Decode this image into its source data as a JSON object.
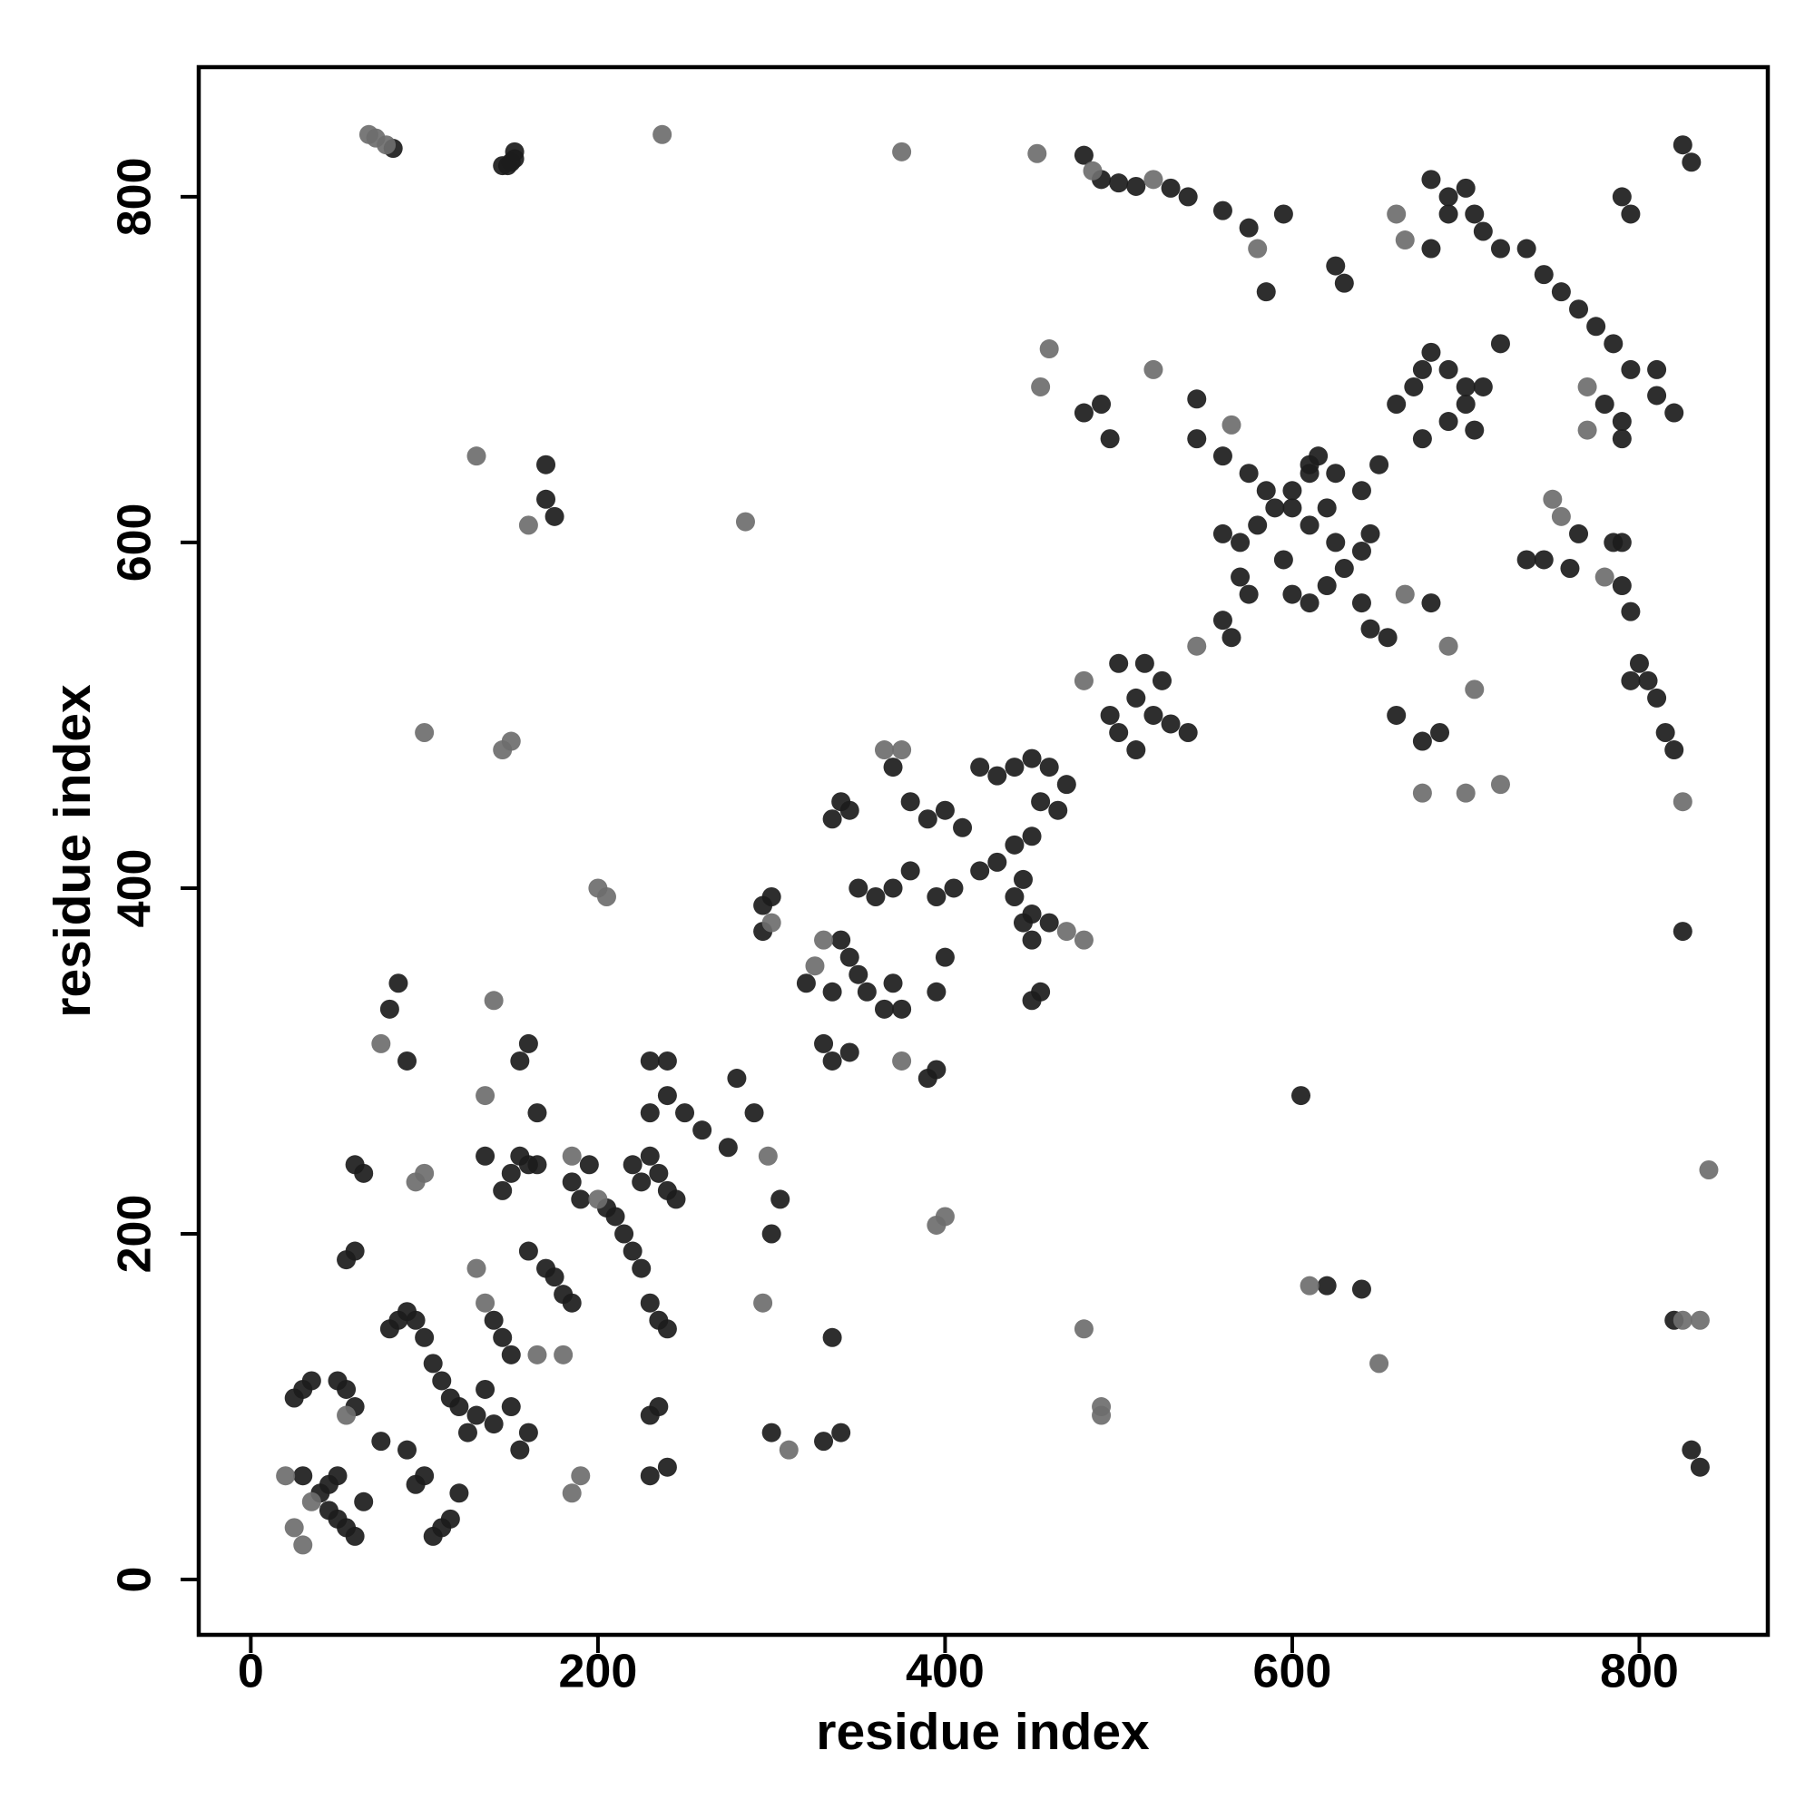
{
  "chart_data": {
    "type": "scatter",
    "x_label": "residue index",
    "y_label": "residue index",
    "xlim": [
      -30,
      874
    ],
    "ylim": [
      -32,
      875
    ],
    "xticks": [
      0,
      200,
      400,
      600,
      800
    ],
    "yticks": [
      0,
      200,
      400,
      600,
      800
    ],
    "grid": false,
    "series": [
      {
        "color": "#1c1c1c",
        "x": [
          82,
          145,
          148,
          150,
          152,
          152,
          480,
          490,
          500,
          510,
          530,
          540,
          560,
          575,
          585,
          595,
          625,
          630,
          680,
          690,
          700,
          705,
          710,
          720,
          735,
          745,
          755,
          765,
          775,
          785,
          790,
          795,
          825,
          830,
          680,
          690,
          480,
          490,
          495,
          545,
          545,
          560,
          575,
          585,
          600,
          610,
          615,
          625,
          640,
          650,
          660,
          670,
          675,
          680,
          690,
          700,
          690,
          700,
          710,
          720,
          705,
          675,
          780,
          790,
          795,
          810,
          810,
          820,
          790,
          560,
          570,
          580,
          590,
          600,
          610,
          595,
          600,
          610,
          620,
          630,
          640,
          645,
          610,
          620,
          625,
          570,
          575,
          560,
          565,
          640,
          645,
          655,
          680,
          660,
          675,
          685,
          765,
          745,
          760,
          790,
          785,
          795,
          800,
          805,
          810,
          815,
          820,
          825,
          830,
          835,
          820,
          735,
          790,
          795,
          495,
          510,
          500,
          520,
          530,
          540,
          500,
          515,
          525,
          510,
          420,
          430,
          440,
          450,
          460,
          470,
          465,
          455,
          450,
          440,
          430,
          420,
          410,
          400,
          390,
          380,
          370,
          340,
          345,
          335,
          450,
          460,
          445,
          440,
          445,
          450,
          455,
          450,
          405,
          395,
          380,
          370,
          360,
          350,
          340,
          345,
          350,
          355,
          365,
          370,
          375,
          335,
          320,
          400,
          395,
          390,
          395,
          330,
          335,
          345,
          295,
          295,
          300,
          170,
          175,
          170,
          620,
          640,
          605,
          335,
          330,
          340,
          300,
          300,
          305,
          290,
          280,
          275,
          260,
          250,
          240,
          230,
          240,
          230,
          220,
          225,
          230,
          235,
          240,
          245,
          205,
          210,
          215,
          220,
          225,
          230,
          235,
          240,
          230,
          235,
          240,
          230,
          195,
          185,
          190,
          160,
          155,
          165,
          150,
          145,
          135,
          155,
          160,
          165,
          85,
          80,
          90,
          60,
          65,
          55,
          60,
          160,
          170,
          175,
          180,
          185,
          160,
          155,
          150,
          140,
          135,
          130,
          125,
          120,
          115,
          110,
          105,
          100,
          95,
          90,
          85,
          80,
          140,
          145,
          150,
          110,
          105,
          115,
          100,
          95,
          120,
          90,
          75,
          60,
          55,
          50,
          30,
          25,
          35,
          30,
          40,
          45,
          50,
          55,
          60,
          50,
          45,
          65
        ],
        "values": [
          828,
          818,
          818,
          820,
          822,
          826,
          824,
          810,
          808,
          806,
          805,
          800,
          792,
          782,
          745,
          790,
          760,
          750,
          810,
          800,
          805,
          790,
          780,
          770,
          770,
          755,
          745,
          735,
          725,
          715,
          800,
          790,
          830,
          820,
          770,
          790,
          675,
          680,
          660,
          683,
          660,
          650,
          640,
          630,
          620,
          640,
          650,
          640,
          630,
          645,
          680,
          690,
          700,
          710,
          700,
          690,
          670,
          680,
          690,
          715,
          665,
          660,
          680,
          670,
          700,
          700,
          685,
          675,
          660,
          605,
          600,
          610,
          620,
          630,
          645,
          590,
          570,
          565,
          575,
          585,
          595,
          605,
          610,
          620,
          600,
          580,
          570,
          555,
          545,
          565,
          550,
          545,
          565,
          500,
          485,
          490,
          605,
          590,
          585,
          575,
          600,
          560,
          530,
          520,
          510,
          490,
          480,
          375,
          75,
          65,
          150,
          590,
          600,
          520,
          500,
          510,
          490,
          500,
          495,
          490,
          530,
          530,
          520,
          480,
          470,
          465,
          470,
          475,
          470,
          460,
          445,
          450,
          430,
          425,
          415,
          410,
          435,
          445,
          440,
          450,
          470,
          450,
          445,
          440,
          385,
          380,
          405,
          395,
          380,
          370,
          340,
          335,
          400,
          395,
          410,
          400,
          395,
          400,
          370,
          360,
          350,
          340,
          330,
          345,
          330,
          340,
          345,
          360,
          340,
          290,
          295,
          310,
          300,
          305,
          375,
          390,
          395,
          625,
          615,
          645,
          170,
          168,
          280,
          140,
          80,
          85,
          85,
          200,
          220,
          270,
          290,
          250,
          260,
          270,
          280,
          300,
          300,
          270,
          240,
          230,
          245,
          235,
          225,
          220,
          215,
          210,
          200,
          190,
          180,
          160,
          150,
          145,
          95,
          100,
          65,
          60,
          240,
          230,
          220,
          240,
          245,
          240,
          235,
          225,
          245,
          300,
          310,
          270,
          345,
          330,
          300,
          240,
          235,
          185,
          190,
          190,
          180,
          175,
          165,
          160,
          85,
          75,
          100,
          90,
          110,
          95,
          85,
          100,
          105,
          115,
          125,
          140,
          150,
          155,
          150,
          145,
          150,
          140,
          130,
          30,
          25,
          35,
          60,
          55,
          50,
          75,
          80,
          100,
          110,
          115,
          110,
          105,
          115,
          60,
          50,
          40,
          35,
          30,
          25,
          60,
          55,
          45
        ]
      },
      {
        "color": "#6e6e6e",
        "x": [
          68,
          72,
          78,
          237,
          375,
          453,
          485,
          520,
          580,
          660,
          665,
          455,
          460,
          520,
          565,
          770,
          770,
          750,
          755,
          780,
          700,
          675,
          720,
          705,
          825,
          840,
          825,
          835,
          365,
          375,
          480,
          470,
          375,
          300,
          200,
          205,
          130,
          285,
          100,
          145,
          150,
          160,
          395,
          400,
          610,
          650,
          480,
          490,
          490,
          310,
          295,
          298,
          200,
          185,
          135,
          140,
          75,
          95,
          100,
          165,
          180,
          190,
          185,
          130,
          135,
          20,
          25,
          30,
          35,
          55,
          330,
          325,
          545,
          480,
          690,
          665
        ],
        "values": [
          836,
          834,
          830,
          836,
          826,
          825,
          815,
          810,
          770,
          790,
          775,
          690,
          712,
          700,
          668,
          690,
          665,
          625,
          615,
          580,
          455,
          455,
          460,
          515,
          450,
          237,
          150,
          150,
          480,
          480,
          370,
          375,
          300,
          380,
          400,
          395,
          650,
          612,
          490,
          480,
          485,
          610,
          205,
          210,
          170,
          125,
          145,
          100,
          95,
          75,
          160,
          245,
          220,
          245,
          280,
          335,
          310,
          230,
          235,
          130,
          130,
          60,
          50,
          180,
          160,
          60,
          30,
          20,
          45,
          95,
          370,
          355,
          540,
          520,
          540,
          570
        ]
      }
    ]
  }
}
